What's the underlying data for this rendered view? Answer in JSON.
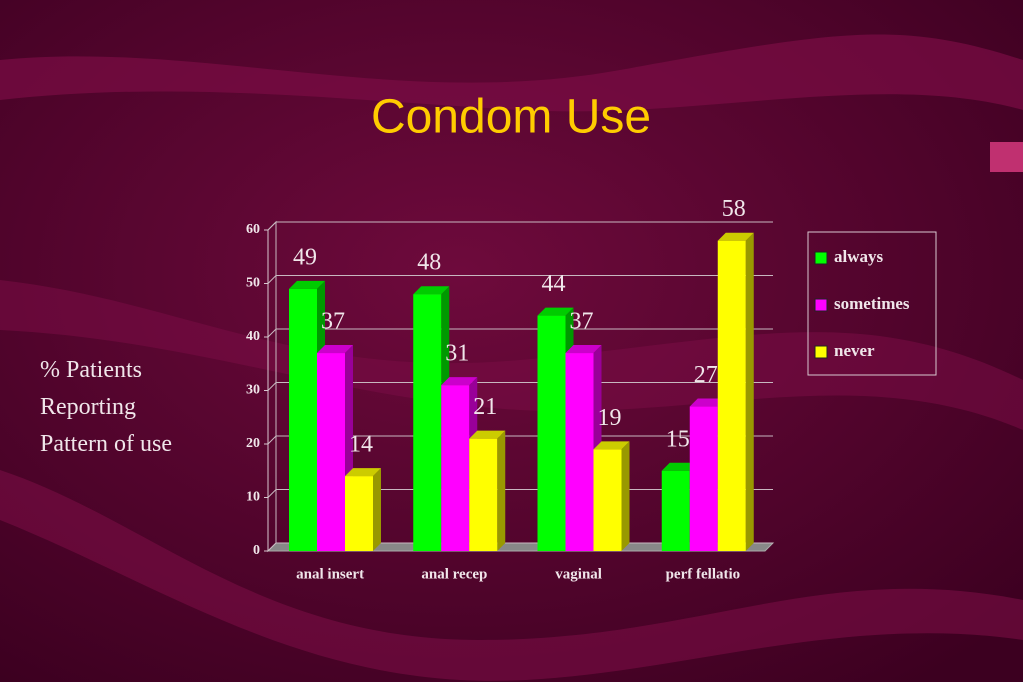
{
  "chart_data": {
    "type": "bar3d",
    "title": "Condom Use",
    "y_label": "% Patients Reporting Pattern of use",
    "categories": [
      "anal insert",
      "anal recep",
      "vaginal",
      "perf fellatio"
    ],
    "series": [
      {
        "name": "always",
        "color": "#00ff00",
        "values": [
          49,
          48,
          44,
          15
        ]
      },
      {
        "name": "sometimes",
        "color": "#ff00ff",
        "values": [
          37,
          31,
          37,
          27
        ]
      },
      {
        "name": "never",
        "color": "#ffff00",
        "values": [
          14,
          21,
          19,
          58
        ]
      }
    ],
    "ylim": [
      0,
      60
    ],
    "yticks": [
      0,
      10,
      20,
      30,
      40,
      50,
      60
    ],
    "grid": true,
    "legend": "right"
  }
}
